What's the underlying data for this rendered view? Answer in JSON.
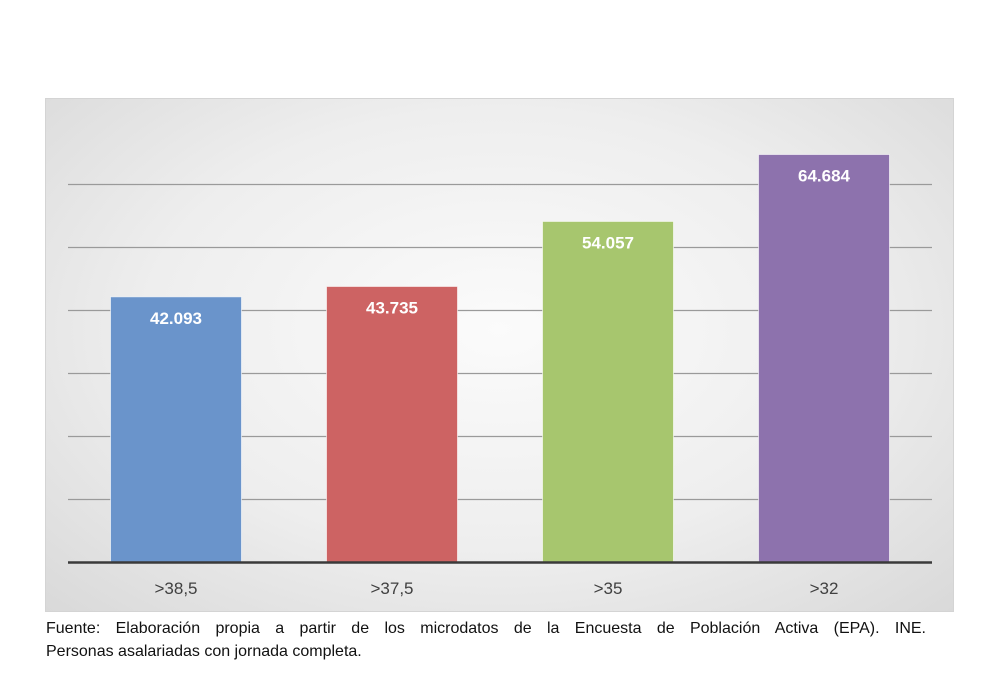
{
  "chart_data": {
    "type": "bar",
    "categories": [
      ">38,5",
      ">37,5",
      ">35",
      ">32"
    ],
    "values": [
      42093,
      43735,
      54057,
      64684
    ],
    "value_labels": [
      "42.093",
      "43.735",
      "54.057",
      "64.684"
    ],
    "bar_colors": [
      "#6a94cb",
      "#cd6363",
      "#a7c66e",
      "#8d72ad"
    ],
    "ylim": [
      0,
      70000
    ],
    "y_gridlines": [
      10000,
      20000,
      30000,
      40000,
      50000,
      60000
    ],
    "grid": true,
    "show_y_tick_labels": false,
    "title": "",
    "xlabel": "",
    "ylabel": ""
  },
  "source": {
    "line1": "Fuente: Elaboración propia a partir de los microdatos de la Encuesta de Población Activa (EPA). INE.",
    "line2": "Personas asalariadas con jornada completa."
  }
}
